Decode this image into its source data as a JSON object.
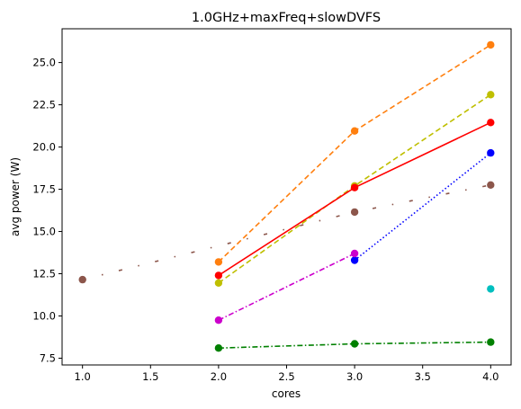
{
  "chart_data": {
    "type": "line",
    "title": "1.0GHz+maxFreq+slowDVFS",
    "xlabel": "cores",
    "ylabel": "avg power (W)",
    "xlim": [
      0.85,
      4.15
    ],
    "ylim": [
      7.1,
      27.0
    ],
    "xticks": [
      1.0,
      1.5,
      2.0,
      2.5,
      3.0,
      3.5,
      4.0
    ],
    "xtick_labels": [
      "1.0",
      "1.5",
      "2.0",
      "2.5",
      "3.0",
      "3.5",
      "4.0"
    ],
    "yticks": [
      7.5,
      10.0,
      12.5,
      15.0,
      17.5,
      20.0,
      22.5,
      25.0
    ],
    "ytick_labels": [
      "7.5",
      "10.0",
      "12.5",
      "15.0",
      "17.5",
      "20.0",
      "22.5",
      "25.0"
    ],
    "grid": false,
    "legend": "none",
    "series": [
      {
        "color": "#ff7f0e",
        "linestyle": "dashed",
        "points": [
          [
            2,
            13.2
          ],
          [
            3,
            20.95
          ],
          [
            4,
            26.05
          ]
        ]
      },
      {
        "color": "#bfbf00",
        "linestyle": "dashed",
        "points": [
          [
            2,
            11.95
          ],
          [
            3,
            17.7
          ],
          [
            4,
            23.1
          ]
        ]
      },
      {
        "color": "#ff0000",
        "linestyle": "solid",
        "points": [
          [
            2,
            12.4
          ],
          [
            3,
            17.6
          ],
          [
            4,
            21.45
          ]
        ]
      },
      {
        "color": "#0000ff",
        "linestyle": "dotted",
        "points": [
          [
            3,
            13.3
          ],
          [
            4,
            19.65
          ]
        ]
      },
      {
        "color": "#8c564b",
        "linestyle": "loosely-dashdotted",
        "points": [
          [
            1,
            12.15
          ],
          [
            3,
            16.15
          ],
          [
            4,
            17.75
          ]
        ]
      },
      {
        "color": "#cc00cc",
        "linestyle": "dashdot",
        "points": [
          [
            2,
            9.75
          ],
          [
            3,
            13.7
          ]
        ]
      },
      {
        "color": "#00bfbf",
        "linestyle": "none",
        "points": [
          [
            4,
            11.6
          ]
        ]
      },
      {
        "color": "#008000",
        "linestyle": "dashdot",
        "points": [
          [
            2,
            8.1
          ],
          [
            3,
            8.35
          ],
          [
            4,
            8.45
          ]
        ]
      }
    ]
  }
}
